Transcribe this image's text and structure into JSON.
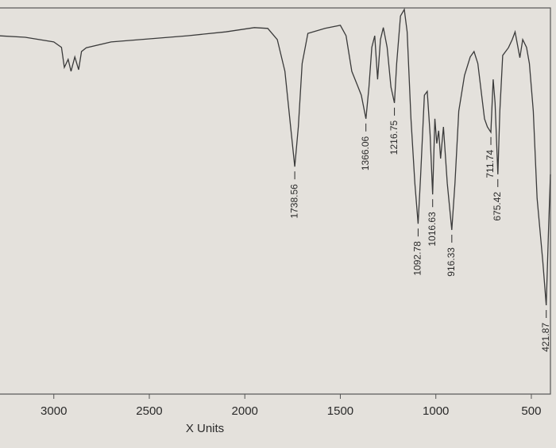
{
  "chart_data": {
    "type": "line",
    "xlabel": "X Units",
    "xlim": [
      3290,
      400
    ],
    "xticks": [
      3000,
      2500,
      2000,
      1500,
      1000,
      500
    ],
    "ylim": [
      0,
      100
    ],
    "color": "#3a3a3a",
    "x": [
      3290,
      3150,
      3000,
      2960,
      2945,
      2925,
      2910,
      2890,
      2870,
      2855,
      2830,
      2700,
      2500,
      2300,
      2100,
      1950,
      1880,
      1830,
      1790,
      1760,
      1738.56,
      1720,
      1700,
      1670,
      1580,
      1500,
      1470,
      1440,
      1410,
      1390,
      1366.06,
      1350,
      1335,
      1320,
      1305,
      1290,
      1275,
      1255,
      1235,
      1216.75,
      1205,
      1185,
      1165,
      1150,
      1130,
      1110,
      1092.78,
      1080,
      1060,
      1045,
      1030,
      1016.63,
      1005,
      995,
      985,
      975,
      960,
      940,
      916.33,
      900,
      880,
      850,
      820,
      800,
      780,
      760,
      745,
      730,
      711.74,
      700,
      690,
      675.42,
      665,
      650,
      620,
      600,
      585,
      570,
      560,
      545,
      525,
      510,
      490,
      470,
      440,
      421.87,
      410,
      400
    ],
    "values": [
      92.8,
      92.4,
      91.2,
      89.8,
      84.6,
      86.7,
      83.6,
      87.3,
      84.0,
      88.7,
      89.7,
      91.2,
      92.0,
      92.8,
      93.8,
      94.9,
      94.7,
      91.8,
      83.6,
      69.2,
      58.9,
      69.2,
      85.6,
      93.4,
      94.7,
      95.5,
      92.8,
      83.6,
      79.9,
      77.4,
      71.3,
      79.5,
      89.8,
      92.8,
      81.5,
      91.8,
      94.9,
      89.8,
      79.5,
      75.4,
      85.6,
      97.9,
      99.6,
      93.8,
      71.3,
      54.6,
      44.1,
      56.3,
      77.4,
      78.4,
      67.2,
      51.7,
      71.3,
      64.9,
      68.2,
      61.0,
      69.2,
      54.6,
      42.5,
      54.6,
      73.3,
      82.5,
      87.3,
      88.7,
      85.6,
      77.4,
      71.3,
      69.2,
      67.8,
      81.5,
      75.4,
      56.9,
      73.3,
      87.7,
      89.7,
      91.8,
      93.8,
      89.8,
      87.1,
      91.8,
      89.8,
      85.6,
      73.3,
      50.7,
      34.3,
      23.0,
      42.5,
      56.9
    ],
    "peaks": [
      1738.56,
      1366.06,
      1216.75,
      1092.78,
      1016.63,
      916.33,
      711.74,
      675.42,
      421.87
    ]
  }
}
